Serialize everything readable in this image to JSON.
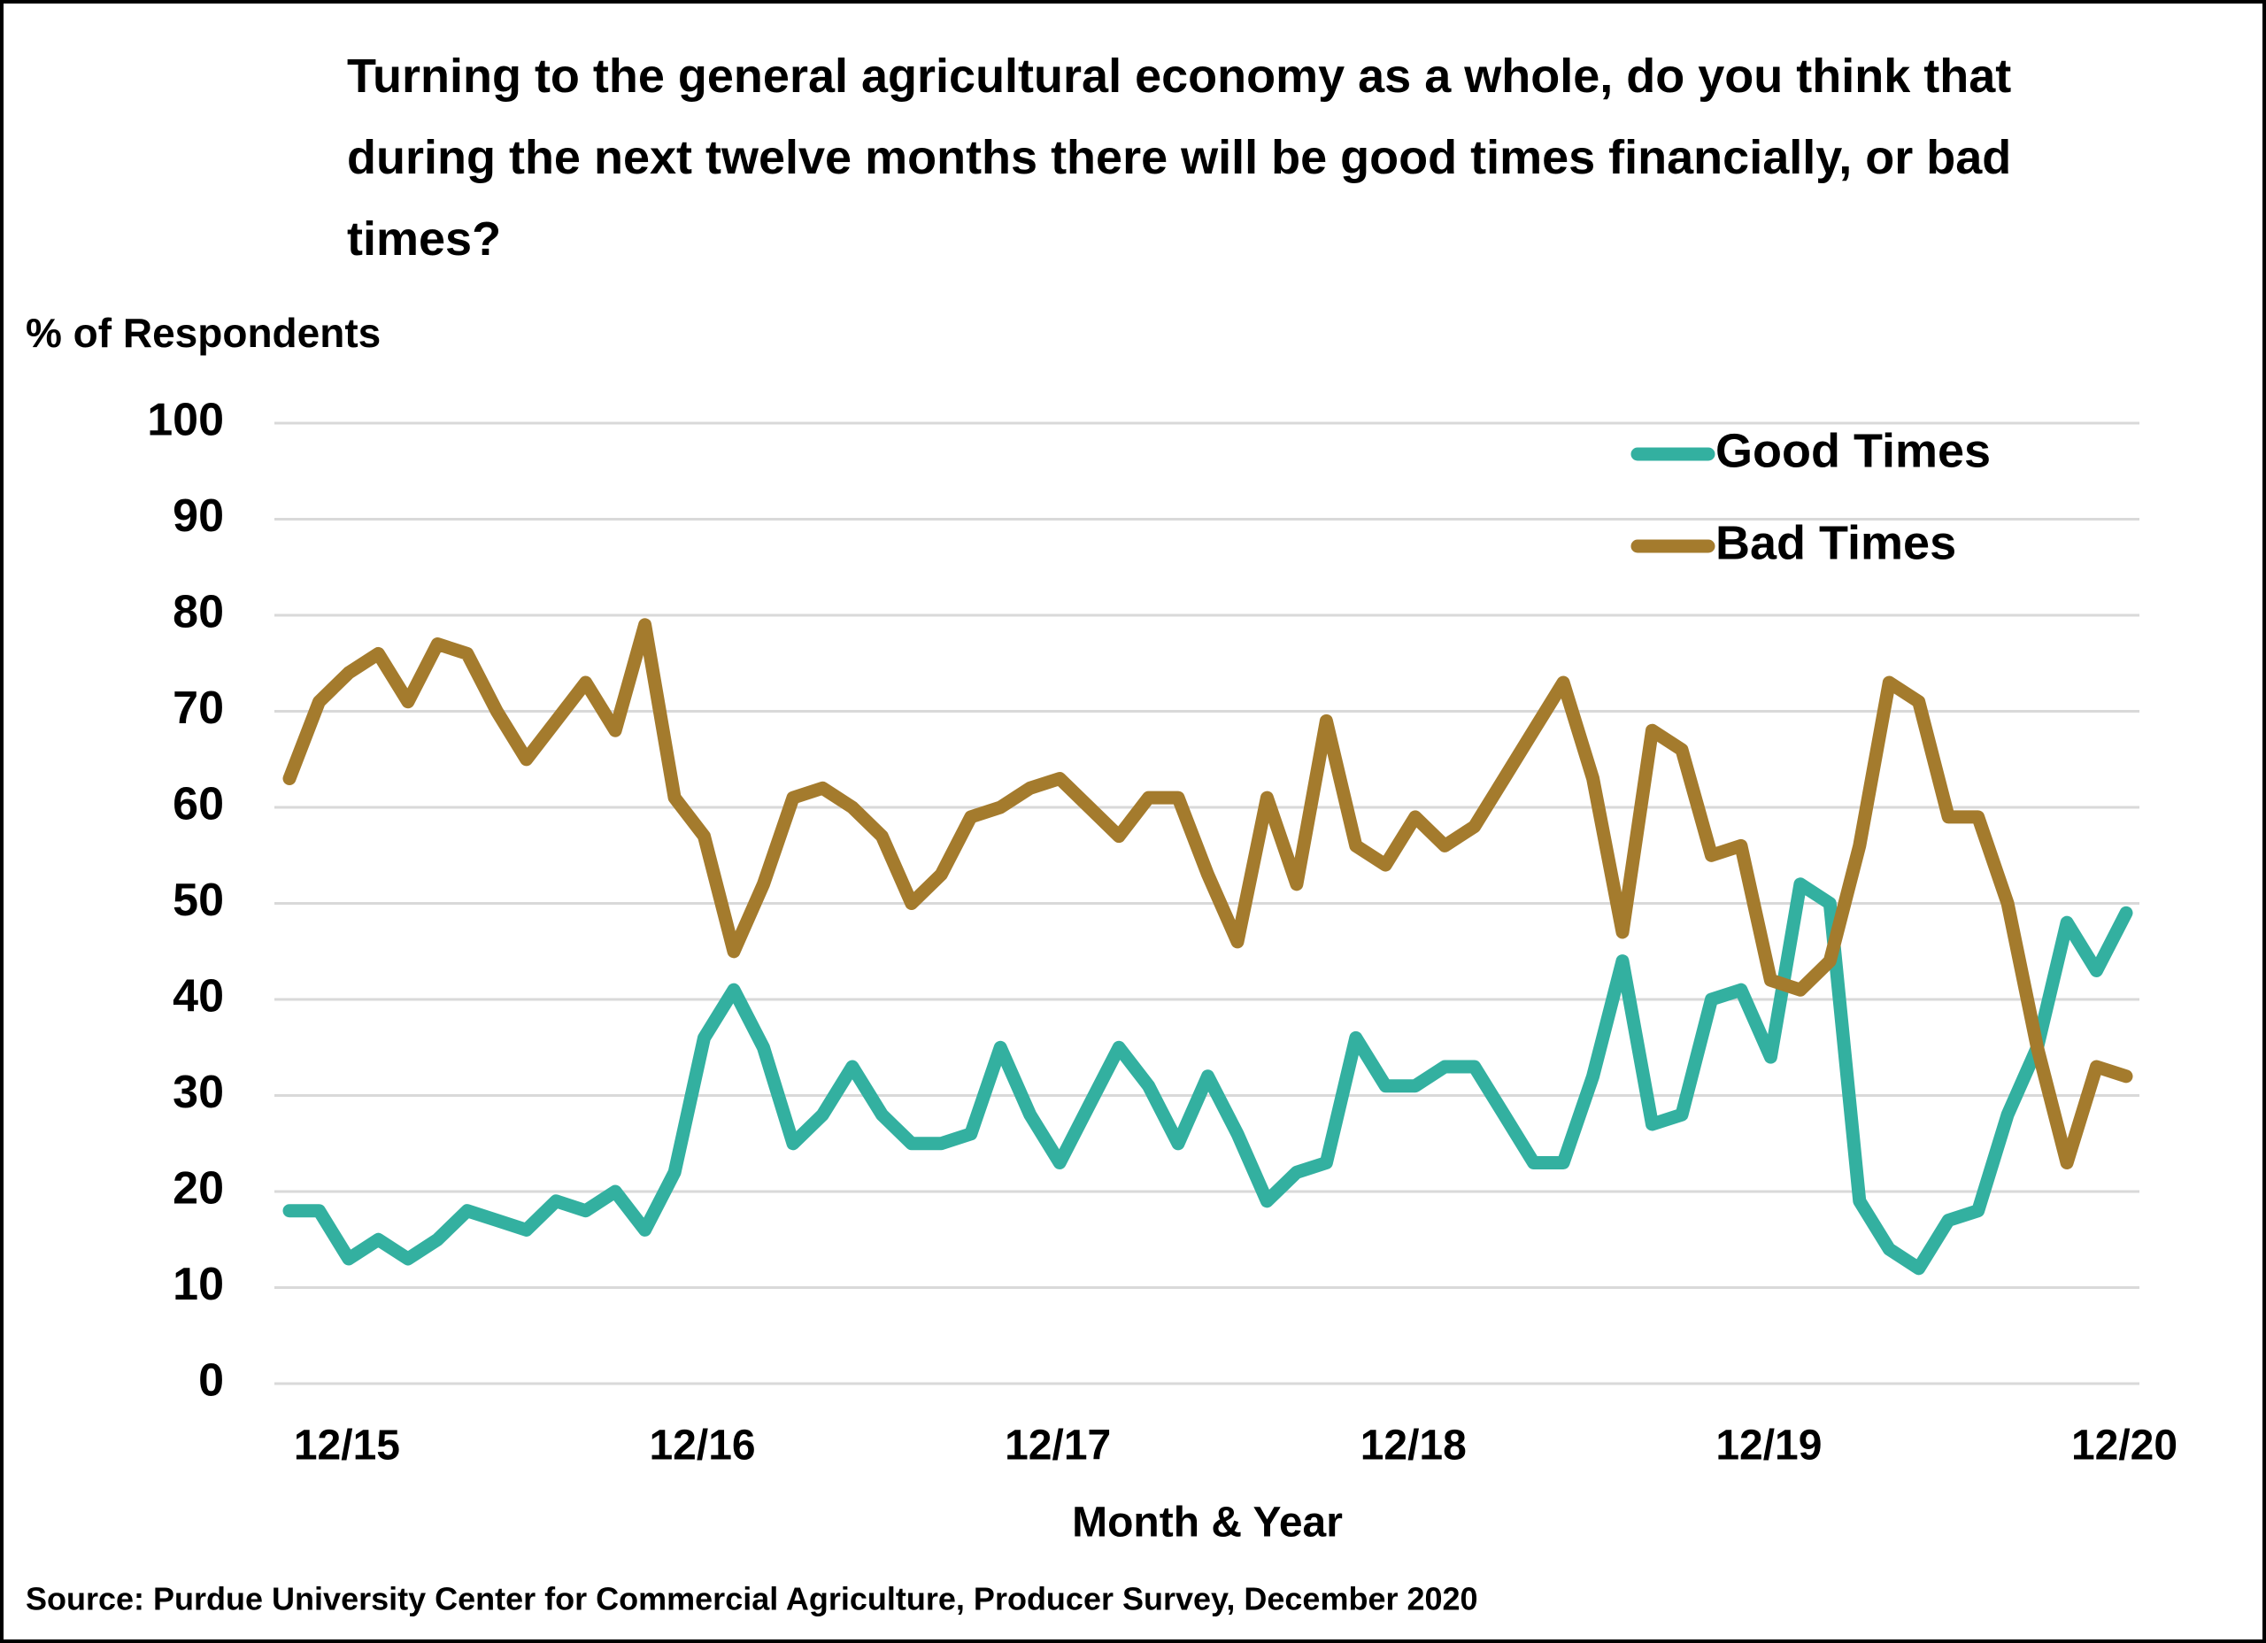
{
  "chart_data": {
    "type": "line",
    "title": "Turning to the general agricultural economy as a whole, do you think that during the next twelve months there will be good times financially, or bad times?",
    "y_label": "% of Respondents",
    "x_label": "Month & Year",
    "source": "Source: Purdue University Center for Commercial Agriculture, Producer Survey, December 2020",
    "categories": [
      null,
      null,
      "12/15",
      null,
      null,
      null,
      null,
      null,
      null,
      null,
      null,
      null,
      null,
      null,
      "12/16",
      null,
      null,
      null,
      null,
      null,
      null,
      null,
      null,
      null,
      null,
      null,
      "12/17",
      null,
      null,
      null,
      null,
      null,
      null,
      null,
      null,
      null,
      null,
      null,
      "12/18",
      null,
      null,
      null,
      null,
      null,
      null,
      null,
      null,
      null,
      null,
      null,
      "12/19",
      null,
      null,
      null,
      null,
      null,
      null,
      null,
      null,
      null,
      null,
      null,
      "12/20"
    ],
    "series": [
      {
        "name": "Good Times",
        "color": "#33b0a0",
        "values": [
          18,
          18,
          13,
          15,
          13,
          15,
          18,
          17,
          16,
          19,
          18,
          20,
          16,
          22,
          36,
          41,
          35,
          25,
          28,
          33,
          28,
          25,
          25,
          26,
          35,
          28,
          23,
          29,
          35,
          31,
          25,
          32,
          26,
          19,
          22,
          23,
          36,
          31,
          31,
          33,
          33,
          28,
          23,
          23,
          32,
          44,
          27,
          28,
          40,
          41,
          34,
          52,
          50,
          19,
          14,
          12,
          17,
          18,
          28,
          35,
          48,
          43,
          49
        ]
      },
      {
        "name": "Bad Times",
        "color": "#a47b2d",
        "values": [
          63,
          71,
          74,
          76,
          71,
          77,
          76,
          70,
          65,
          69,
          73,
          68,
          79,
          61,
          57,
          45,
          52,
          61,
          62,
          60,
          57,
          50,
          53,
          59,
          60,
          62,
          63,
          60,
          57,
          61,
          61,
          53,
          46,
          61,
          52,
          69,
          56,
          54,
          59,
          56,
          58,
          63,
          68,
          73,
          63,
          47,
          68,
          66,
          55,
          56,
          42,
          41,
          44,
          56,
          73,
          71,
          59,
          59,
          50,
          35,
          23,
          33,
          32
        ]
      }
    ],
    "ylim": [
      0,
      100
    ],
    "yticks": [
      0,
      10,
      20,
      30,
      40,
      50,
      60,
      70,
      80,
      90,
      100
    ],
    "grid": true,
    "legend": "top-right"
  }
}
